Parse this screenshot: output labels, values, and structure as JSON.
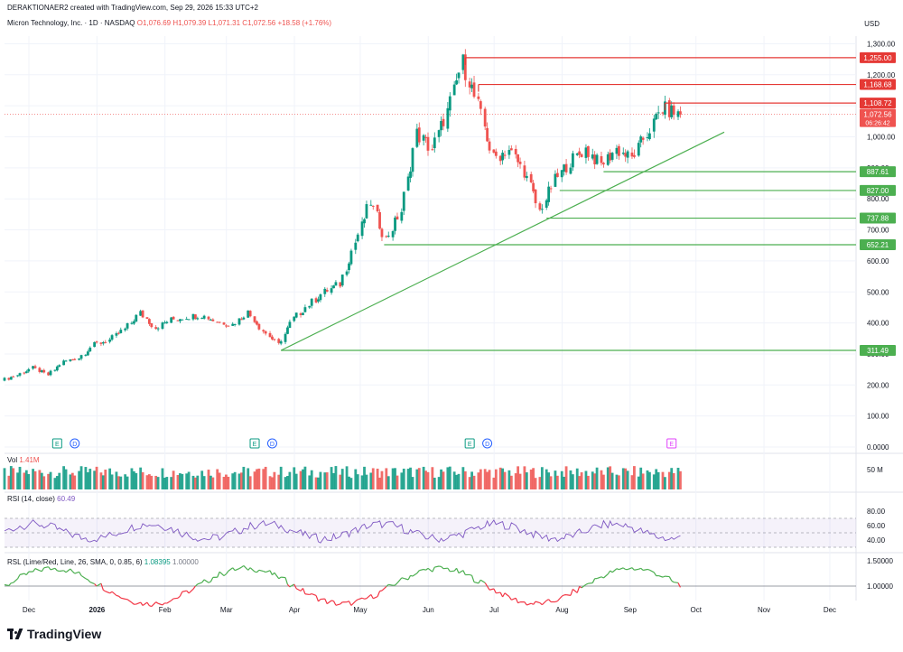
{
  "header": {
    "created_by": "DERAKTIONAER2 created with TradingView.com, Sep 29, 2026 15:33 UTC+2",
    "symbol": "Micron Technology, Inc. · 1D · NASDAQ",
    "ohlc": "O1,076.69 H1,079.39 L1,071.31 C1,072.56 +18.58 (+1.76%)",
    "currency": "USD"
  },
  "colors": {
    "up": "#089981",
    "down": "#ef5350",
    "support": "#4caf50",
    "resistance": "#e53935",
    "rsi": "#7e57c2",
    "rsl_up": "#4caf50",
    "rsl_down": "#f23645"
  },
  "volume_pane": {
    "label": "Vol",
    "value": "1.41M",
    "axis_label": "50 M"
  },
  "rsi_pane": {
    "label": "RSI (14, close)",
    "value": "60.49",
    "axis_labels": [
      "80.00",
      "60.00",
      "40.00"
    ]
  },
  "rsl_pane": {
    "label": "RSL (Lime/Red, Line, 26, SMA, 0, 0.85, 6)",
    "value1": "1.08395",
    "value2": "1.00000",
    "axis_labels": [
      "1.50000",
      "1.00000"
    ]
  },
  "events": [
    "E",
    "D",
    "E",
    "D",
    "E",
    "D",
    "E"
  ],
  "brand": "TradingView",
  "chart_data": {
    "type": "candlestick",
    "y_ticks": [
      "1,300.00",
      "1,200.00",
      "1,100.00",
      "1,000.00",
      "900.00",
      "800.00",
      "700.00",
      "600.00",
      "500.00",
      "400.00",
      "300.00",
      "200.00",
      "100.00",
      "0.0000"
    ],
    "x_ticks": [
      "Dec",
      "2026",
      "Feb",
      "Mar",
      "Apr",
      "May",
      "Jun",
      "Jul",
      "Aug",
      "Sep",
      "Oct",
      "Nov",
      "Dec"
    ],
    "resistance_levels": [
      1255.0,
      1168.68,
      1108.72
    ],
    "resistance_labels": [
      "1,255.00",
      "1,168.68",
      "1,108.72"
    ],
    "support_levels": [
      887.61,
      827.0,
      737.88,
      652.21,
      311.49
    ],
    "support_labels": [
      "887.61",
      "827.00",
      "737.88",
      "652.21",
      "311.49"
    ],
    "last_price": "1,072.56",
    "countdown": "06:26:42",
    "trendline": {
      "from": [
        "2026-03-30",
        311.49
      ],
      "to": [
        "2026-10-18",
        1015
      ]
    },
    "close_series": [
      {
        "date": "2025-11-24",
        "close": 215
      },
      {
        "date": "2025-12-01",
        "close": 232
      },
      {
        "date": "2025-12-08",
        "close": 255
      },
      {
        "date": "2025-12-15",
        "close": 232
      },
      {
        "date": "2025-12-22",
        "close": 275
      },
      {
        "date": "2025-12-29",
        "close": 288
      },
      {
        "date": "2026-01-05",
        "close": 330
      },
      {
        "date": "2026-01-12",
        "close": 345
      },
      {
        "date": "2026-01-19",
        "close": 380
      },
      {
        "date": "2026-01-26",
        "close": 432
      },
      {
        "date": "2026-02-02",
        "close": 385
      },
      {
        "date": "2026-02-09",
        "close": 410
      },
      {
        "date": "2026-02-16",
        "close": 420
      },
      {
        "date": "2026-02-23",
        "close": 425
      },
      {
        "date": "2026-03-02",
        "close": 405
      },
      {
        "date": "2026-03-09",
        "close": 395
      },
      {
        "date": "2026-03-16",
        "close": 435
      },
      {
        "date": "2026-03-23",
        "close": 375
      },
      {
        "date": "2026-03-30",
        "close": 330
      },
      {
        "date": "2026-04-06",
        "close": 415
      },
      {
        "date": "2026-04-13",
        "close": 460
      },
      {
        "date": "2026-04-20",
        "close": 500
      },
      {
        "date": "2026-04-27",
        "close": 525
      },
      {
        "date": "2026-05-04",
        "close": 660
      },
      {
        "date": "2026-05-11",
        "close": 790
      },
      {
        "date": "2026-05-18",
        "close": 670
      },
      {
        "date": "2026-05-25",
        "close": 760
      },
      {
        "date": "2026-06-01",
        "close": 1010
      },
      {
        "date": "2026-06-08",
        "close": 960
      },
      {
        "date": "2026-06-15",
        "close": 1080
      },
      {
        "date": "2026-06-22",
        "close": 1240
      },
      {
        "date": "2026-06-29",
        "close": 1100
      },
      {
        "date": "2026-07-06",
        "close": 930
      },
      {
        "date": "2026-07-13",
        "close": 960
      },
      {
        "date": "2026-07-20",
        "close": 890
      },
      {
        "date": "2026-07-27",
        "close": 760
      },
      {
        "date": "2026-08-03",
        "close": 860
      },
      {
        "date": "2026-08-10",
        "close": 920
      },
      {
        "date": "2026-08-17",
        "close": 960
      },
      {
        "date": "2026-08-24",
        "close": 910
      },
      {
        "date": "2026-08-31",
        "close": 960
      },
      {
        "date": "2026-09-07",
        "close": 930
      },
      {
        "date": "2026-09-14",
        "close": 1010
      },
      {
        "date": "2026-09-21",
        "close": 1090
      },
      {
        "date": "2026-09-29",
        "close": 1072.56
      }
    ]
  }
}
